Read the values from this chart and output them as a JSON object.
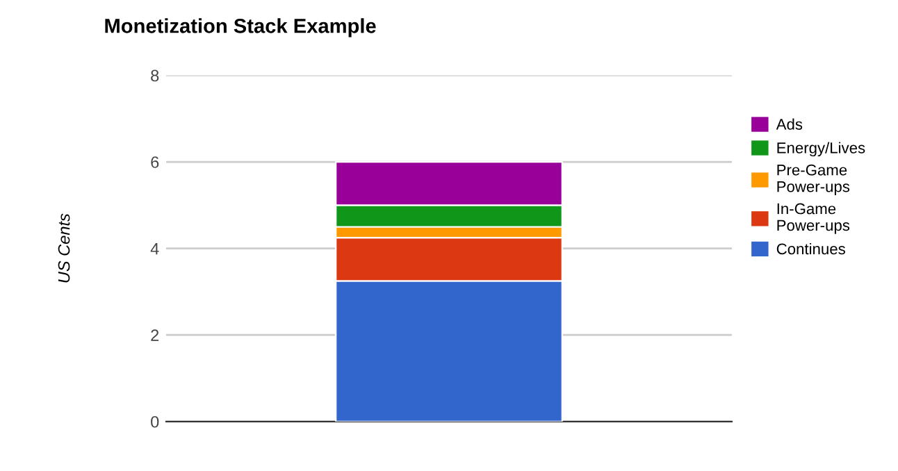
{
  "chart_data": {
    "type": "bar",
    "title": "Monetization Stack Example",
    "ylabel": "US Cents",
    "categories": [
      null
    ],
    "stacked": true,
    "series": [
      {
        "name": "Continues",
        "color": "#3366cc",
        "values": [
          3.25
        ]
      },
      {
        "name": "In-Game\nPower-ups",
        "color": "#dc3912",
        "values": [
          1.0
        ]
      },
      {
        "name": "Pre-Game\nPower-ups",
        "color": "#ff9900",
        "values": [
          0.25
        ]
      },
      {
        "name": "Energy/Lives",
        "color": "#109618",
        "values": [
          0.5
        ]
      },
      {
        "name": "Ads",
        "color": "#990099",
        "values": [
          1.0
        ]
      }
    ],
    "ylim": [
      0,
      8
    ],
    "yticks": [
      0,
      2,
      4,
      6,
      8
    ],
    "grid": "y",
    "legend": "right"
  }
}
